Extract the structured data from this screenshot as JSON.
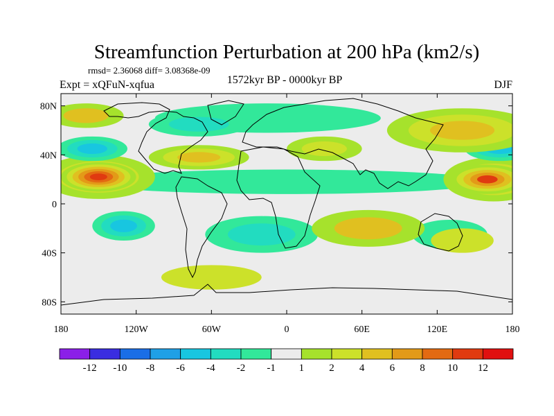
{
  "chart_data": {
    "type": "heatmap",
    "title": "Streamfunction Perturbation at 200 hPa (km2/s)",
    "stats": "rmsd= 2.36068 diff= 3.08368e-09",
    "experiment": "Expt = xQFuN-xqfua",
    "period": "1572kyr BP - 0000kyr BP",
    "season": "DJF",
    "xlim": [
      180,
      540
    ],
    "ylim": [
      -90,
      90
    ],
    "x_ticks": [
      {
        "value": 180,
        "label": "180"
      },
      {
        "value": 240,
        "label": "120W"
      },
      {
        "value": 300,
        "label": "60W"
      },
      {
        "value": 360,
        "label": "0"
      },
      {
        "value": 420,
        "label": "60E"
      },
      {
        "value": 480,
        "label": "120E"
      },
      {
        "value": 540,
        "label": "180"
      }
    ],
    "y_ticks": [
      {
        "value": 80,
        "label": "80N"
      },
      {
        "value": 40,
        "label": "40N"
      },
      {
        "value": 0,
        "label": "0"
      },
      {
        "value": -40,
        "label": "40S"
      },
      {
        "value": -80,
        "label": "80S"
      }
    ],
    "colorbar": {
      "boundaries": [
        -12,
        -10,
        -8,
        -6,
        -4,
        -2,
        -1,
        1,
        2,
        4,
        6,
        8,
        10,
        12
      ],
      "labels": [
        "-12",
        "-10",
        "-8",
        "-6",
        "-4",
        "-2",
        "-1",
        "1",
        "2",
        "4",
        "6",
        "8",
        "10",
        "12"
      ],
      "colors": [
        "#8b1fe8",
        "#3a2de0",
        "#1a6ee6",
        "#1fa0e6",
        "#18c6e0",
        "#22dcc0",
        "#32e89a",
        "#ececec",
        "#a6e22c",
        "#cce12a",
        "#e0c020",
        "#e39a18",
        "#e36a12",
        "#e03a10",
        "#e01010"
      ]
    },
    "anomalies": [
      {
        "lon": 210,
        "lat": 22,
        "rlon": 30,
        "rlat": 12,
        "value": 11
      },
      {
        "lon": 210,
        "lat": 22,
        "rlon": 45,
        "rlat": 18,
        "value": 5
      },
      {
        "lon": 520,
        "lat": 20,
        "rlon": 30,
        "rlat": 12,
        "value": 10
      },
      {
        "lon": 525,
        "lat": 20,
        "rlon": 40,
        "rlat": 18,
        "value": 5
      },
      {
        "lon": 205,
        "lat": 45,
        "rlon": 28,
        "rlat": 10,
        "value": -6
      },
      {
        "lon": 530,
        "lat": 45,
        "rlon": 28,
        "rlat": 10,
        "value": -5
      },
      {
        "lon": 290,
        "lat": 38,
        "rlon": 40,
        "rlat": 10,
        "value": 5
      },
      {
        "lon": 345,
        "lat": 70,
        "rlon": 90,
        "rlat": 12,
        "value": -2
      },
      {
        "lon": 290,
        "lat": 65,
        "rlon": 40,
        "rlat": 10,
        "value": -4
      },
      {
        "lon": 200,
        "lat": 72,
        "rlon": 30,
        "rlat": 10,
        "value": 4
      },
      {
        "lon": 500,
        "lat": 60,
        "rlon": 60,
        "rlat": 18,
        "value": 5
      },
      {
        "lon": 390,
        "lat": 45,
        "rlon": 30,
        "rlat": 10,
        "value": 3
      },
      {
        "lon": 360,
        "lat": 18,
        "rlon": 160,
        "rlat": 10,
        "value": -2
      },
      {
        "lon": 230,
        "lat": -18,
        "rlon": 25,
        "rlat": 12,
        "value": -5
      },
      {
        "lon": 425,
        "lat": -20,
        "rlon": 45,
        "rlat": 15,
        "value": 4
      },
      {
        "lon": 340,
        "lat": -25,
        "rlon": 45,
        "rlat": 15,
        "value": -3
      },
      {
        "lon": 490,
        "lat": -25,
        "rlon": 30,
        "rlat": 12,
        "value": -2
      },
      {
        "lon": 300,
        "lat": -60,
        "rlon": 40,
        "rlat": 10,
        "value": 2
      },
      {
        "lon": 500,
        "lat": -30,
        "rlon": 25,
        "rlat": 10,
        "value": 2
      }
    ]
  }
}
